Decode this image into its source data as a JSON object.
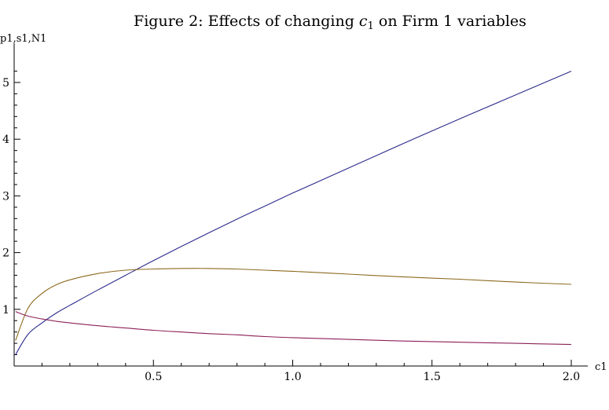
{
  "chart_data": {
    "type": "line",
    "title_prefix": "Figure 2: Effects of changing ",
    "title_var": "c",
    "title_sub": "1",
    "title_suffix": " on Firm 1 variables",
    "xlabel": "c1",
    "ylabel": "p1,s1,N1",
    "xlim": [
      0,
      2.0
    ],
    "ylim": [
      0,
      5.3
    ],
    "x_ticks": [
      0.5,
      1.0,
      1.5,
      2.0
    ],
    "x_tick_labels": [
      "0.5",
      "1.0",
      "1.5",
      "2.0"
    ],
    "y_ticks": [
      1,
      2,
      3,
      4,
      5
    ],
    "y_tick_labels": [
      "1",
      "2",
      "3",
      "4",
      "5"
    ],
    "grid": false,
    "x": [
      0.005,
      0.05,
      0.1,
      0.15,
      0.2,
      0.3,
      0.4,
      0.5,
      0.6,
      0.7,
      0.8,
      0.9,
      1.0,
      1.2,
      1.4,
      1.6,
      1.8,
      2.0
    ],
    "series": [
      {
        "color": "#2b2b8c",
        "values": [
          0.2,
          0.56,
          0.76,
          0.93,
          1.07,
          1.34,
          1.6,
          1.86,
          2.11,
          2.35,
          2.59,
          2.82,
          3.05,
          3.49,
          3.93,
          4.36,
          4.78,
          5.2
        ]
      },
      {
        "color": "#8c6a1e",
        "values": [
          0.45,
          1.02,
          1.28,
          1.43,
          1.52,
          1.63,
          1.69,
          1.71,
          1.72,
          1.72,
          1.71,
          1.69,
          1.67,
          1.62,
          1.57,
          1.53,
          1.48,
          1.44
        ]
      },
      {
        "color": "#8c2058",
        "values": [
          0.96,
          0.88,
          0.83,
          0.79,
          0.76,
          0.71,
          0.67,
          0.63,
          0.6,
          0.57,
          0.55,
          0.52,
          0.5,
          0.47,
          0.44,
          0.42,
          0.4,
          0.38
        ]
      }
    ]
  }
}
